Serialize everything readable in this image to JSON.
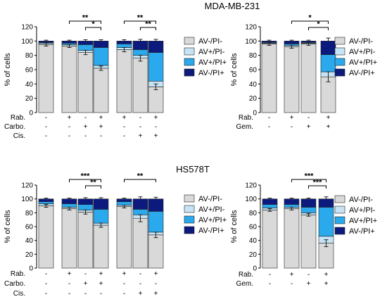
{
  "colors": {
    "AV-/PI-": "#d9d9d9",
    "AV+/PI-": "#c6e4f5",
    "AV+/PI+": "#2aa9ec",
    "AV-/PI+": "#0c1a7e"
  },
  "sections": [
    {
      "title": "MDA-MB-231"
    },
    {
      "title": "HS578T"
    }
  ],
  "chart_data": [
    {
      "type": "bar",
      "stacked": true,
      "section": 0,
      "ylabel": "% of cells",
      "ylim": [
        0,
        120
      ],
      "yticks": [
        0,
        20,
        40,
        60,
        80,
        100,
        120
      ],
      "legend": [
        "AV-/PI-",
        "AV+/PI-",
        "AV+/PI+",
        "AV-/PI+"
      ],
      "condition_rows": [
        {
          "label": "Rab.",
          "values": [
            "-",
            "+",
            "-",
            "+",
            "+",
            "-",
            "+"
          ]
        },
        {
          "label": "Carbo.",
          "values": [
            "-",
            "-",
            "+",
            "+",
            "-",
            "-",
            "-"
          ]
        },
        {
          "label": "Cis.",
          "values": [
            "-",
            "-",
            "-",
            "-",
            "-",
            "+",
            "+"
          ]
        }
      ],
      "bars": [
        {
          "values": [
            95,
            2,
            1,
            2
          ],
          "err": 2
        },
        {
          "values": [
            93,
            2,
            2,
            3
          ],
          "err": 2
        },
        {
          "values": [
            84,
            3,
            8,
            5
          ],
          "err": 3
        },
        {
          "values": [
            62,
            4,
            25,
            9
          ],
          "err": 3
        },
        {
          "values": [
            88,
            3,
            5,
            4
          ],
          "err": 3
        },
        {
          "values": [
            76,
            4,
            8,
            12
          ],
          "err": 4
        },
        {
          "values": [
            36,
            8,
            40,
            16
          ],
          "err": 4
        }
      ],
      "significance": [
        {
          "from": 1,
          "to": 3,
          "label": "**"
        },
        {
          "from": 2,
          "to": 3,
          "label": "*"
        },
        {
          "from": 4,
          "to": 6,
          "label": "**"
        },
        {
          "from": 5,
          "to": 6,
          "label": "**"
        }
      ]
    },
    {
      "type": "bar",
      "stacked": true,
      "section": 0,
      "ylabel": "% of cells",
      "ylim": [
        0,
        120
      ],
      "yticks": [
        0,
        20,
        40,
        60,
        80,
        100,
        120
      ],
      "legend": [
        "AV-/PI-",
        "AV+/PI-",
        "AV+/PI+",
        "AV-/PI+"
      ],
      "condition_rows": [
        {
          "label": "Rab.",
          "values": [
            "-",
            "+",
            "-",
            "+"
          ]
        },
        {
          "label": "Gem.",
          "values": [
            "-",
            "-",
            "+",
            "+"
          ]
        }
      ],
      "bars": [
        {
          "values": [
            96,
            1,
            1,
            2
          ],
          "err": 2
        },
        {
          "values": [
            92,
            2,
            2,
            4
          ],
          "err": 2
        },
        {
          "values": [
            96,
            1,
            1,
            2
          ],
          "err": 2
        },
        {
          "values": [
            50,
            7,
            24,
            19
          ],
          "err": 7
        }
      ],
      "significance": [
        {
          "from": 1,
          "to": 3,
          "label": "*"
        },
        {
          "from": 2,
          "to": 3,
          "label": "*"
        }
      ]
    },
    {
      "type": "bar",
      "stacked": true,
      "section": 1,
      "ylabel": "% of cells",
      "ylim": [
        0,
        120
      ],
      "yticks": [
        0,
        20,
        40,
        60,
        80,
        100,
        120
      ],
      "legend": [
        "AV-/PI-",
        "AV+/PI-",
        "AV+/PI+",
        "AV-/PI+"
      ],
      "condition_rows": [
        {
          "label": "Rab.",
          "values": [
            "-",
            "+",
            "-",
            "+",
            "+",
            "-",
            "+"
          ]
        },
        {
          "label": "Carbo.",
          "values": [
            "-",
            "-",
            "+",
            "+",
            "-",
            "-",
            "-"
          ]
        },
        {
          "label": "Cis.",
          "values": [
            "-",
            "-",
            "-",
            "-",
            "-",
            "+",
            "+"
          ]
        }
      ],
      "bars": [
        {
          "values": [
            90,
            3,
            3,
            4
          ],
          "err": 2
        },
        {
          "values": [
            86,
            2,
            5,
            7
          ],
          "err": 2
        },
        {
          "values": [
            81,
            3,
            8,
            8
          ],
          "err": 3
        },
        {
          "values": [
            62,
            3,
            20,
            15
          ],
          "err": 3
        },
        {
          "values": [
            89,
            2,
            5,
            4
          ],
          "err": 2
        },
        {
          "values": [
            72,
            5,
            8,
            15
          ],
          "err": 5
        },
        {
          "values": [
            48,
            4,
            30,
            18
          ],
          "err": 4
        }
      ],
      "significance": [
        {
          "from": 1,
          "to": 3,
          "label": "***"
        },
        {
          "from": 2,
          "to": 3,
          "label": "**"
        },
        {
          "from": 4,
          "to": 6,
          "label": "**"
        }
      ]
    },
    {
      "type": "bar",
      "stacked": true,
      "section": 1,
      "ylabel": "% of cells",
      "ylim": [
        0,
        120
      ],
      "yticks": [
        0,
        20,
        40,
        60,
        80,
        100,
        120
      ],
      "legend": [
        "AV-/PI-",
        "AV+/PI-",
        "AV+/PI+",
        "AV-/PI+"
      ],
      "condition_rows": [
        {
          "label": "Rab.",
          "values": [
            "-",
            "+",
            "-",
            "+"
          ]
        },
        {
          "label": "Gem.",
          "values": [
            "-",
            "-",
            "+",
            "+"
          ]
        }
      ],
      "bars": [
        {
          "values": [
            84,
            3,
            5,
            8
          ],
          "err": 2
        },
        {
          "values": [
            86,
            2,
            4,
            8
          ],
          "err": 2
        },
        {
          "values": [
            77,
            3,
            8,
            12
          ],
          "err": 2
        },
        {
          "values": [
            36,
            10,
            42,
            12
          ],
          "err": 5
        }
      ],
      "significance": [
        {
          "from": 1,
          "to": 3,
          "label": "***"
        },
        {
          "from": 2,
          "to": 3,
          "label": "***"
        }
      ]
    }
  ]
}
